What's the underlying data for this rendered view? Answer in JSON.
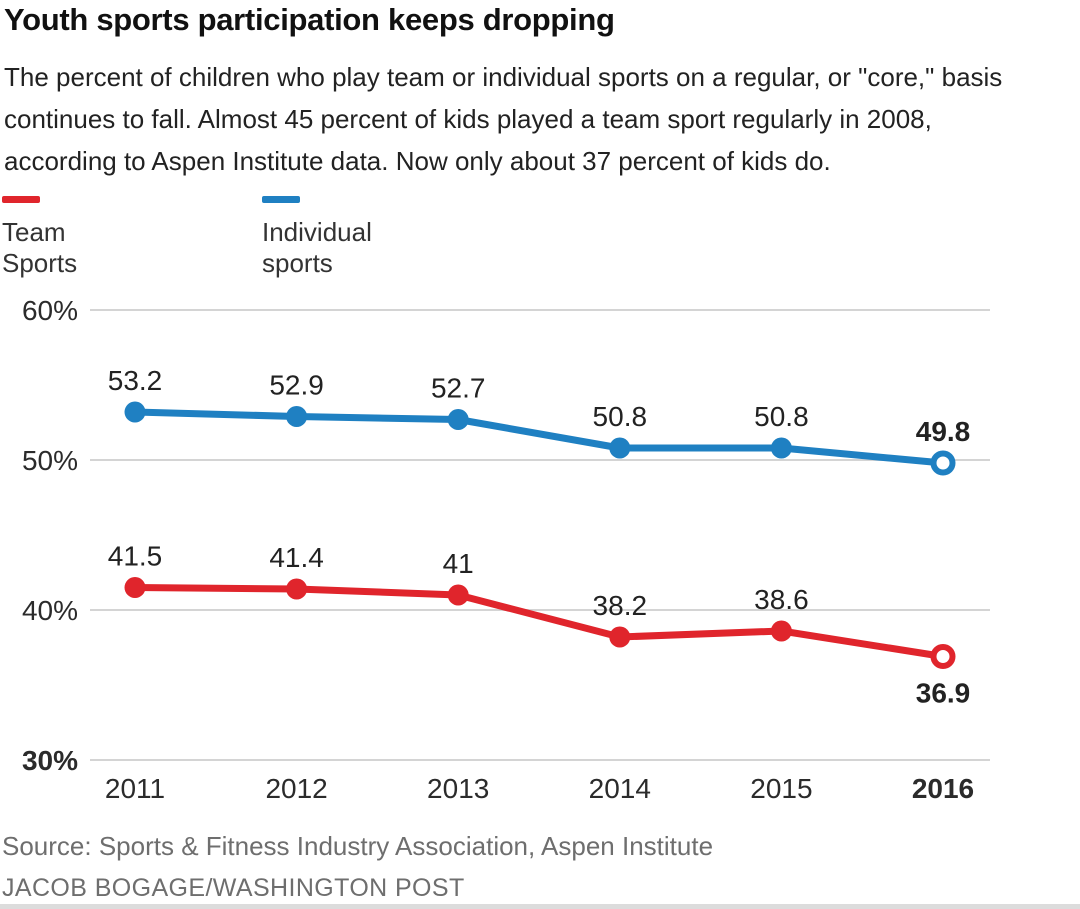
{
  "title": "Youth sports participation keeps dropping",
  "subtitle": "The percent of children who play team or individual sports on a regular, or \"core,\" basis continues to fall. Almost 45 percent of kids played a team sport regularly in 2008, according to Aspen Institute data. Now only about 37 percent of kids do.",
  "legend": [
    {
      "label": "Team Sports",
      "color": "#e0252c"
    },
    {
      "label": "Individual sports",
      "color": "#1f80c2"
    }
  ],
  "chart_data": {
    "type": "line",
    "x": [
      "2011",
      "2012",
      "2013",
      "2014",
      "2015",
      "2016"
    ],
    "x_last_bold": true,
    "series": [
      {
        "name": "Individual sports",
        "color": "#1f80c2",
        "values": [
          53.2,
          52.9,
          52.7,
          50.8,
          50.8,
          49.8
        ],
        "last_point_open": true,
        "last_label_bold": true,
        "last_label_position": "above"
      },
      {
        "name": "Team Sports",
        "color": "#e0252c",
        "values": [
          41.5,
          41.4,
          41,
          38.2,
          38.6,
          36.9
        ],
        "last_point_open": true,
        "last_label_bold": true,
        "last_label_position": "below"
      }
    ],
    "yticks": [
      {
        "label": "60%",
        "value": 60,
        "bold": false
      },
      {
        "label": "50%",
        "value": 50,
        "bold": false
      },
      {
        "label": "40%",
        "value": 40,
        "bold": false
      },
      {
        "label": "30%",
        "value": 30,
        "bold": true
      }
    ],
    "ylim": [
      30,
      62
    ],
    "grid": true,
    "grid_color": "#d4d4d4",
    "label_color": "#222222",
    "tick_color": "#2b2b2b",
    "legend_position": "top-left",
    "title": "Youth sports participation keeps dropping",
    "xlabel": "",
    "ylabel": ""
  },
  "footer": {
    "source": "Source: Sports & Fitness Industry Association, Aspen Institute",
    "byline": "JACOB BOGAGE/WASHINGTON POST"
  }
}
